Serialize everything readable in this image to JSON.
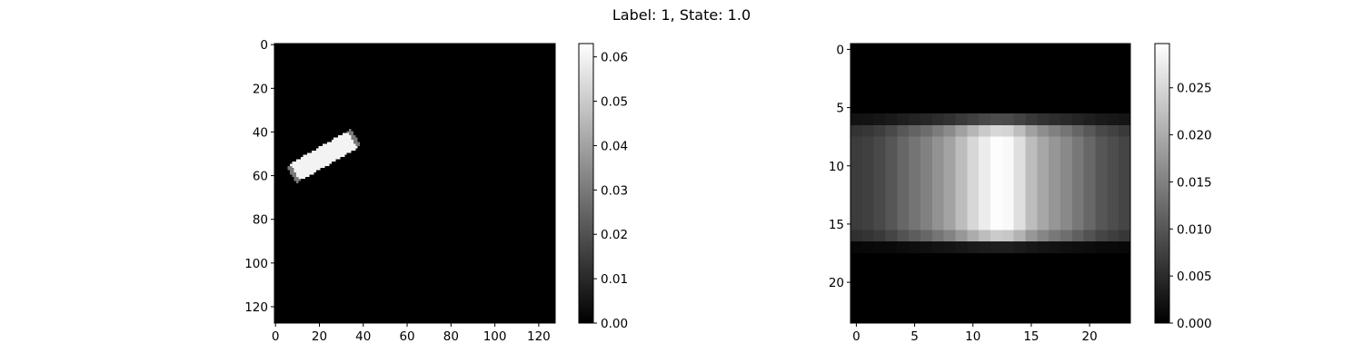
{
  "figure": {
    "title": "Label: 1, State: 1.0"
  },
  "chart_data": [
    {
      "type": "heatmap",
      "colormap": "gray",
      "grid": false,
      "shape": [
        128,
        128
      ],
      "xlim": [
        -0.5,
        127.5
      ],
      "ylim": [
        127.5,
        -0.5
      ],
      "x_ticks": [
        "0",
        "20",
        "40",
        "60",
        "80",
        "100",
        "120"
      ],
      "y_ticks": [
        "0",
        "20",
        "40",
        "60",
        "80",
        "100",
        "120"
      ],
      "shape_object": {
        "kind": "rotated-rectangle",
        "center": [
          22,
          51
        ],
        "length": 34,
        "width": 9,
        "angle_deg": -30,
        "interior_value": 0.06,
        "edge_value": 0.03
      },
      "colorbar": {
        "range": [
          0.0,
          0.063
        ],
        "ticks": [
          "0.00",
          "0.01",
          "0.02",
          "0.03",
          "0.04",
          "0.05",
          "0.06"
        ]
      }
    },
    {
      "type": "heatmap",
      "colormap": "gray",
      "grid": false,
      "shape": [
        24,
        24
      ],
      "xlim": [
        -0.5,
        23.5
      ],
      "ylim": [
        23.5,
        -0.5
      ],
      "x_ticks": [
        "0",
        "5",
        "10",
        "15",
        "20"
      ],
      "y_ticks": [
        "0",
        "5",
        "10",
        "15",
        "20"
      ],
      "band_rows": [
        7,
        16
      ],
      "column_profile": [
        0.007,
        0.0075,
        0.0085,
        0.01,
        0.012,
        0.0135,
        0.015,
        0.017,
        0.019,
        0.022,
        0.025,
        0.0275,
        0.0295,
        0.029,
        0.026,
        0.022,
        0.0195,
        0.0175,
        0.016,
        0.014,
        0.012,
        0.01,
        0.009,
        0.008
      ],
      "row_factors": {
        "6": 0.3,
        "7": 0.85,
        "8": 1.0,
        "9": 1.0,
        "10": 1.0,
        "11": 1.0,
        "12": 1.0,
        "13": 1.0,
        "14": 1.0,
        "15": 1.0,
        "16": 0.8,
        "17": 0.12
      },
      "colorbar": {
        "range": [
          0.0,
          0.0297
        ],
        "ticks": [
          "0.000",
          "0.005",
          "0.010",
          "0.015",
          "0.020",
          "0.025"
        ]
      }
    }
  ]
}
